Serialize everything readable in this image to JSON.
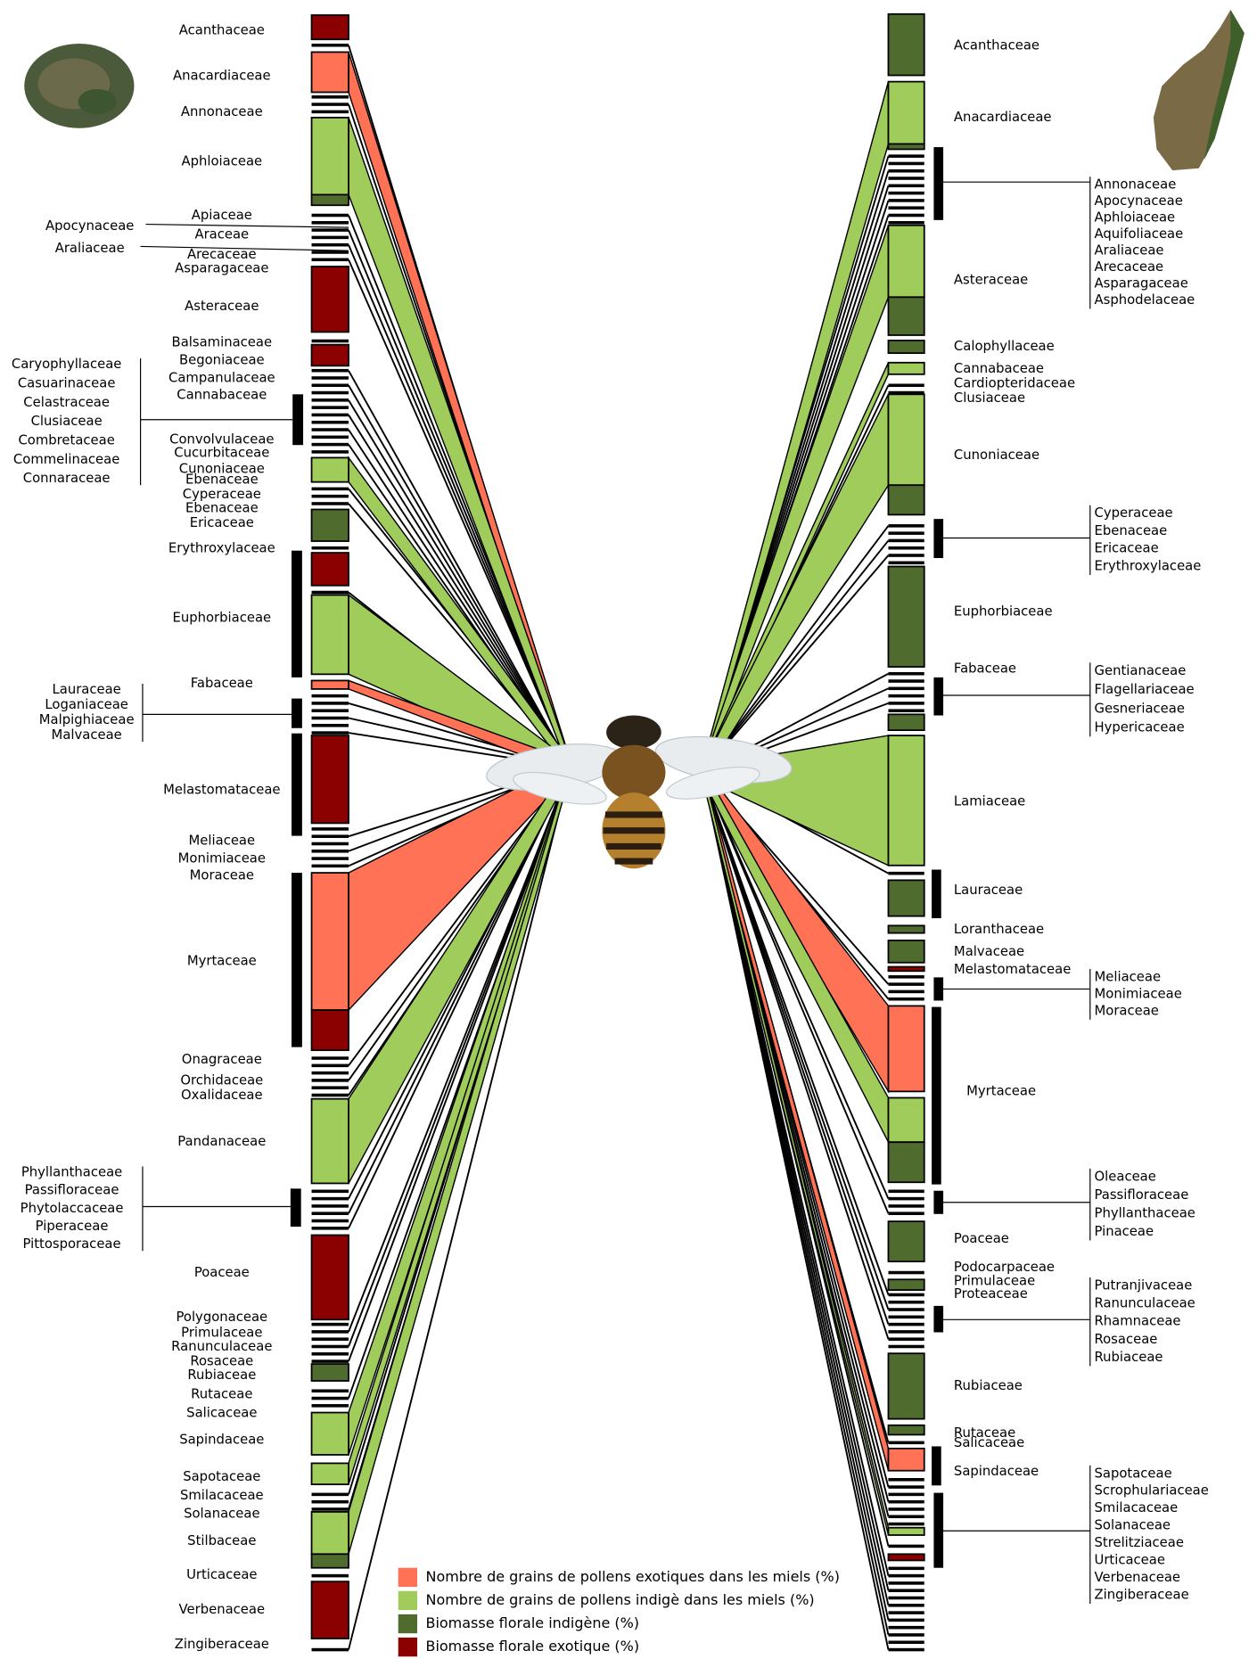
{
  "left_labels": [
    "Acanthaceae",
    "Anacardiaceae",
    "Annonaceae",
    "Aphloiaceae",
    "Apiaceae",
    "Araceae",
    "Arecaceae",
    "Asparagaceae",
    "Asteraceae",
    "Balsaminaceae",
    "Begoniaceae",
    "Campanulaceae",
    "Cannabaceae",
    "Convolvulaceae",
    "Cucurbitaceae",
    "Cunoniaceae",
    "Ebenaceae",
    "Cyperaceae",
    "Ebenaceae",
    "Ericaceae",
    "Erythroxylaceae",
    "Euphorbiaceae",
    "Fabaceae",
    "Melastomataceae",
    "Meliaceae",
    "Monimiaceae",
    "Moraceae",
    "Myrtaceae",
    "Onagraceae",
    "Orchidaceae",
    "Oxalidaceae",
    "Pandanaceae",
    "Poaceae",
    "Polygonaceae",
    "Primulaceae",
    "Ranunculaceae",
    "Rosaceae",
    "Rubiaceae",
    "Rutaceae",
    "Salicaceae",
    "Sapindaceae",
    "Sapotaceae",
    "Smilacaceae",
    "Solanaceae",
    "Stilbaceae",
    "Urticaceae",
    "Verbenaceae",
    "Zingiberaceae"
  ],
  "left_groups": [
    [
      "Apocynaceae",
      "Araliaceae"
    ],
    [
      "Caryophyllaceae",
      "Casuarinaceae",
      "Celastraceae",
      "Clusiaceae",
      "Combretaceae",
      "Commelinaceae",
      "Connaraceae"
    ],
    [
      "Lauraceae",
      "Loganiaceae",
      "Malpighiaceae",
      "Malvaceae"
    ],
    [
      "Phyllanthaceae",
      "Passifloraceae",
      "Phytolaccaceae",
      "Piperaceae",
      "Pittosporaceae"
    ]
  ],
  "right_labels": [
    "Acanthaceae",
    "Anacardiaceae",
    "Asteraceae",
    "Calophyllaceae",
    "Cannabaceae",
    "Cardiopteridaceae",
    "Clusiaceae",
    "Cunoniaceae",
    "Euphorbiaceae",
    "Fabaceae",
    "Lamiaceae",
    "Lauraceae",
    "Loranthaceae",
    "Malvaceae",
    "Melastomataceae",
    "Myrtaceae",
    "Poaceae",
    "Podocarpaceae",
    "Primulaceae",
    "Proteaceae",
    "Rubiaceae",
    "Rutaceae",
    "Salicaceae",
    "Sapindaceae"
  ],
  "right_groups": [
    [
      "Annonaceae",
      "Apocynaceae",
      "Aphloiaceae",
      "Aquifoliaceae",
      "Araliaceae",
      "Arecaceae",
      "Asparagaceae",
      "Asphodelaceae"
    ],
    [
      "Cyperaceae",
      "Ebenaceae",
      "Ericaceae",
      "Erythroxylaceae"
    ],
    [
      "Gentianaceae",
      "Flagellariaceae",
      "Gesneriaceae",
      "Hypericaceae"
    ],
    [
      "Meliaceae",
      "Monimiaceae",
      "Moraceae"
    ],
    [
      "Oleaceae",
      "Passifloraceae",
      "Phyllanthaceae",
      "Pinaceae"
    ],
    [
      "Putranjivaceae",
      "Ranunculaceae",
      "Rhamnaceae",
      "Rosaceae",
      "Rubiaceae"
    ],
    [
      "Sapotaceae",
      "Scrophulariaceae",
      "Smilacaceae",
      "Solanaceae",
      "Strelitziaceae",
      "Urticaceae",
      "Verbenaceae",
      "Zingiberaceae"
    ]
  ],
  "legend": [
    "Nombre de grains de pollens exotiques dans les miels (%)",
    "Nombre de grains de pollens indigè dans les miels (%)",
    "Biomasse florale indigène (%)",
    "Biomasse florale exotique (%)"
  ]
}
